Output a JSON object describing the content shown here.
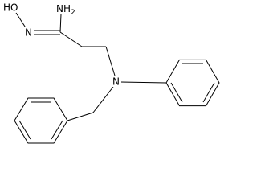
{
  "atoms": [
    {
      "label": "HO"
    },
    {
      "label": "N"
    },
    {
      "label": "NH",
      "subscript": "2"
    },
    {
      "label": "N"
    }
  ]
}
